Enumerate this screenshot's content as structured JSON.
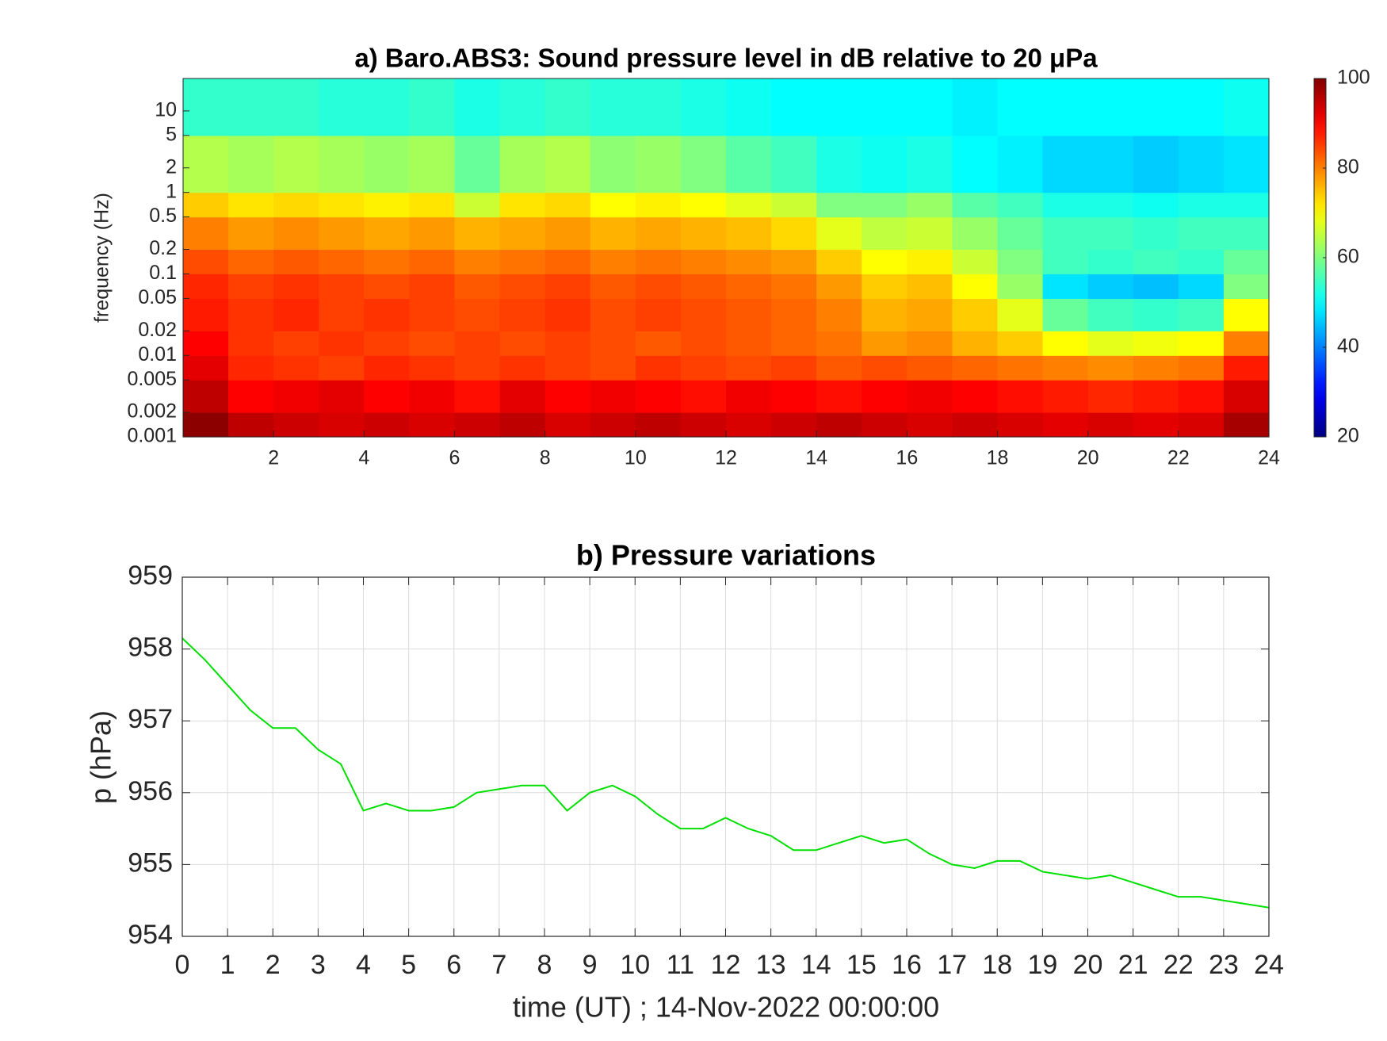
{
  "chart_data": [
    {
      "type": "heatmap",
      "title": "a) Baro.ABS3: Sound pressure level in dB relative to 20 μPa",
      "ylabel": "frequency (Hz)",
      "yscale": "log",
      "colormap": "jet",
      "xbins": [
        0,
        1,
        2,
        3,
        4,
        5,
        6,
        7,
        8,
        9,
        10,
        11,
        12,
        13,
        14,
        15,
        16,
        17,
        18,
        19,
        20,
        21,
        22,
        23,
        24
      ],
      "ybins": [
        0.001,
        0.002,
        0.005,
        0.01,
        0.02,
        0.05,
        0.1,
        0.2,
        0.5,
        1,
        5,
        25
      ],
      "z": [
        [
          99,
          95,
          94,
          93,
          94,
          93,
          94,
          95,
          93,
          94,
          95,
          94,
          93,
          94,
          95,
          94,
          93,
          94,
          93,
          92,
          93,
          92,
          93,
          97
        ],
        [
          95,
          90,
          91,
          92,
          90,
          91,
          89,
          92,
          90,
          91,
          90,
          89,
          91,
          90,
          89,
          90,
          91,
          90,
          89,
          88,
          87,
          88,
          89,
          93
        ],
        [
          92,
          87,
          86,
          85,
          87,
          86,
          85,
          86,
          85,
          84,
          86,
          85,
          84,
          85,
          83,
          84,
          83,
          82,
          81,
          80,
          79,
          80,
          81,
          88
        ],
        [
          90,
          86,
          85,
          86,
          85,
          84,
          85,
          84,
          85,
          84,
          83,
          84,
          83,
          82,
          81,
          78,
          79,
          76,
          74,
          70,
          68,
          69,
          70,
          80
        ],
        [
          88,
          86,
          87,
          85,
          86,
          85,
          84,
          85,
          86,
          84,
          85,
          84,
          83,
          82,
          80,
          76,
          77,
          74,
          68,
          58,
          55,
          54,
          55,
          70
        ],
        [
          87,
          85,
          86,
          85,
          84,
          85,
          83,
          84,
          85,
          83,
          84,
          83,
          82,
          81,
          78,
          74,
          75,
          70,
          62,
          48,
          46,
          45,
          47,
          60
        ],
        [
          84,
          82,
          83,
          82,
          81,
          82,
          80,
          81,
          82,
          80,
          81,
          80,
          79,
          78,
          74,
          70,
          71,
          66,
          60,
          55,
          54,
          55,
          54,
          58
        ],
        [
          80,
          78,
          79,
          78,
          77,
          78,
          76,
          77,
          78,
          76,
          77,
          76,
          75,
          73,
          68,
          65,
          66,
          62,
          58,
          55,
          55,
          54,
          55,
          55
        ],
        [
          74,
          72,
          73,
          72,
          71,
          72,
          66,
          72,
          73,
          70,
          71,
          70,
          68,
          66,
          60,
          60,
          62,
          57,
          55,
          52,
          52,
          51,
          52,
          52
        ],
        [
          64,
          63,
          64,
          63,
          62,
          63,
          58,
          63,
          64,
          61,
          62,
          60,
          57,
          55,
          52,
          51,
          52,
          50,
          49,
          47,
          47,
          46,
          47,
          48
        ],
        [
          54,
          54,
          54,
          53,
          53,
          54,
          52,
          53,
          54,
          53,
          53,
          52,
          51,
          50,
          50,
          50,
          50,
          49,
          50,
          50,
          50,
          50,
          50,
          51
        ]
      ],
      "xlim": [
        0,
        24
      ],
      "xticks": [
        2,
        4,
        6,
        8,
        10,
        12,
        14,
        16,
        18,
        20,
        22,
        24
      ],
      "ylim": [
        0.001,
        25
      ],
      "yticks": [
        0.001,
        0.002,
        0.005,
        0.01,
        0.02,
        0.05,
        0.1,
        0.2,
        0.5,
        1,
        2,
        5,
        10
      ],
      "clim": [
        20,
        100
      ],
      "cticks": [
        20,
        40,
        60,
        80,
        100
      ]
    },
    {
      "type": "line",
      "title": "b) Pressure variations",
      "xlabel": "time (UT) ; 14-Nov-2022 00:00:00",
      "ylabel": "p (hPa)",
      "color": "#00e000",
      "grid": true,
      "x": [
        0,
        0.5,
        1,
        1.5,
        2,
        2.5,
        3,
        3.5,
        4,
        4.5,
        5,
        5.5,
        6,
        6.5,
        7,
        7.5,
        8,
        8.5,
        9,
        9.5,
        10,
        10.5,
        11,
        11.5,
        12,
        12.5,
        13,
        13.5,
        14,
        14.5,
        15,
        15.5,
        16,
        16.5,
        17,
        17.5,
        18,
        18.5,
        19,
        19.5,
        20,
        20.5,
        21,
        21.5,
        22,
        22.5,
        23,
        23.5,
        24
      ],
      "values": [
        958.15,
        957.85,
        957.5,
        957.15,
        956.9,
        956.9,
        956.6,
        956.4,
        955.75,
        955.85,
        955.75,
        955.75,
        955.8,
        956.0,
        956.05,
        956.1,
        956.1,
        955.75,
        956.0,
        956.1,
        955.95,
        955.7,
        955.5,
        955.5,
        955.65,
        955.5,
        955.4,
        955.2,
        955.2,
        955.3,
        955.4,
        955.3,
        955.35,
        955.15,
        955.0,
        954.95,
        955.05,
        955.05,
        954.9,
        954.85,
        954.8,
        954.85,
        954.75,
        954.65,
        954.55,
        954.55,
        954.5,
        954.45,
        954.4
      ],
      "xlim": [
        0,
        24
      ],
      "xticks": [
        0,
        1,
        2,
        3,
        4,
        5,
        6,
        7,
        8,
        9,
        10,
        11,
        12,
        13,
        14,
        15,
        16,
        17,
        18,
        19,
        20,
        21,
        22,
        23,
        24
      ],
      "ylim": [
        954,
        959
      ],
      "yticks": [
        954,
        955,
        956,
        957,
        958,
        959
      ]
    }
  ]
}
